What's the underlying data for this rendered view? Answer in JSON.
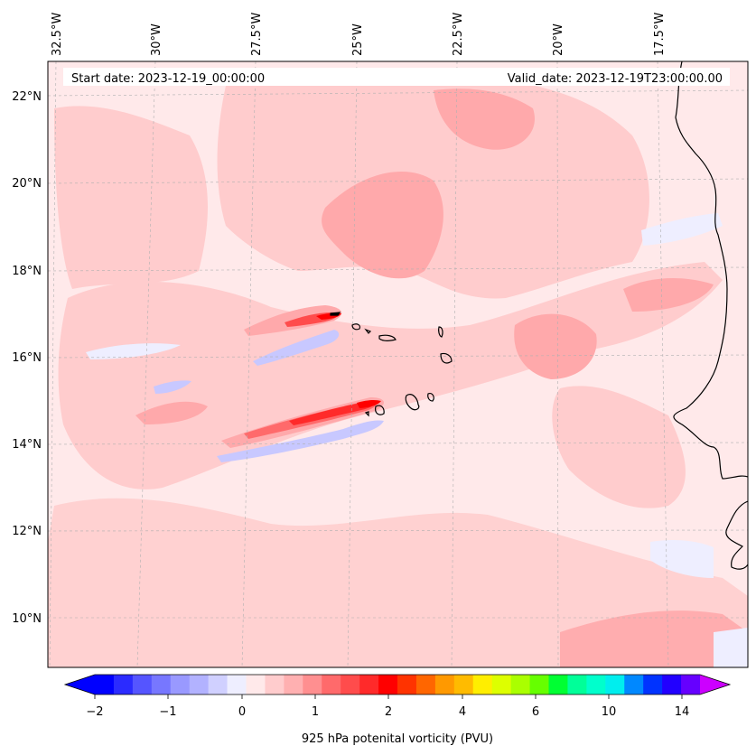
{
  "header": {
    "start_date": "Start date: 2023-12-19_00:00:00",
    "valid_date": "Valid_date: 2023-12-19T23:00:00.00"
  },
  "map": {
    "lon_labels": [
      "32.5°W",
      "30°W",
      "27.5°W",
      "25°W",
      "22.5°W",
      "20°W",
      "17.5°W"
    ],
    "lat_labels": [
      "22°N",
      "20°N",
      "18°N",
      "16°N",
      "14°N",
      "12°N",
      "10°N"
    ],
    "background_color": "#ffe9ea",
    "light_red": "#ffcccd",
    "medium_red": "#ffa9ab",
    "strong_red": "#ff2a2a",
    "blue": "#c8c8ff"
  },
  "colorbar": {
    "label": "925 hPa potenital vorticity (PVU)",
    "ticks": [
      "−2",
      "−1",
      "0",
      "1",
      "2",
      "4",
      "6",
      "10",
      "14"
    ],
    "colors": [
      "#0000ff",
      "#2b2bff",
      "#5555ff",
      "#7777ff",
      "#9999ff",
      "#b2b2ff",
      "#d0d0ff",
      "#eeeeff",
      "#ffe9ea",
      "#ffcccd",
      "#ffb0b1",
      "#ff8f90",
      "#ff6a6b",
      "#ff4c4c",
      "#ff2a2a",
      "#ff0000",
      "#ff3300",
      "#ff6600",
      "#ff9900",
      "#ffbb00",
      "#ffee00",
      "#ddff00",
      "#aaff00",
      "#66ff00",
      "#00ff33",
      "#00ff99",
      "#00ffcc",
      "#00eeee",
      "#0088ff",
      "#0033ff",
      "#2200ff",
      "#6600ff"
    ],
    "extend_low_color": "#0000ff",
    "extend_high_color": "#cc00ff"
  }
}
